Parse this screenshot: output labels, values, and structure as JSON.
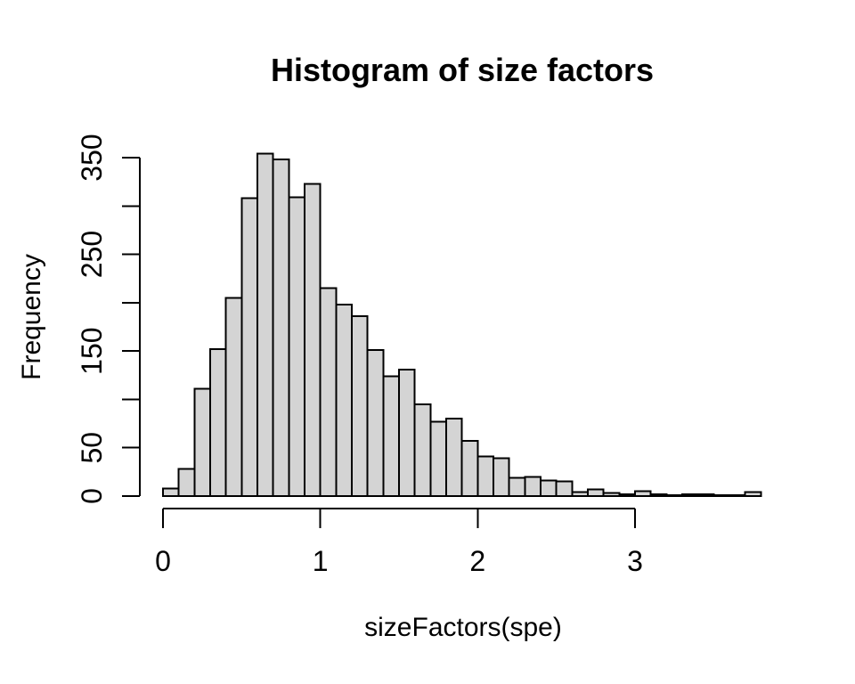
{
  "figure": {
    "title": "Histogram of size factors",
    "x_axis_label": "sizeFactors(spe)",
    "y_axis_label": "Frequency"
  },
  "chart_data": {
    "type": "bar",
    "subtype": "histogram",
    "title": "Histogram of size factors",
    "xlabel": "sizeFactors(spe)",
    "ylabel": "Frequency",
    "bin_start": 0,
    "bin_width": 0.1,
    "counts": [
      8,
      28,
      111,
      152,
      205,
      308,
      354,
      348,
      309,
      323,
      215,
      198,
      186,
      151,
      124,
      131,
      95,
      77,
      80,
      57,
      41,
      39,
      19,
      20,
      16,
      15,
      4,
      7,
      3,
      2,
      5,
      2,
      1,
      2,
      2,
      1,
      1,
      4
    ],
    "xlim": [
      0,
      3.8
    ],
    "ylim": [
      0,
      350
    ],
    "x_ticks": [
      0,
      1,
      2,
      3
    ],
    "x_tick_labels": [
      "0",
      "1",
      "2",
      "3"
    ],
    "y_ticks": [
      0,
      50,
      100,
      150,
      200,
      250,
      300,
      350
    ],
    "y_tick_labels": [
      "0",
      "50",
      "",
      "150",
      "",
      "250",
      "",
      "350"
    ],
    "grid": false,
    "legend": null,
    "bar_fill": "#d4d4d4",
    "bar_stroke": "#000000",
    "axis_color": "#000000",
    "background": "#ffffff"
  }
}
